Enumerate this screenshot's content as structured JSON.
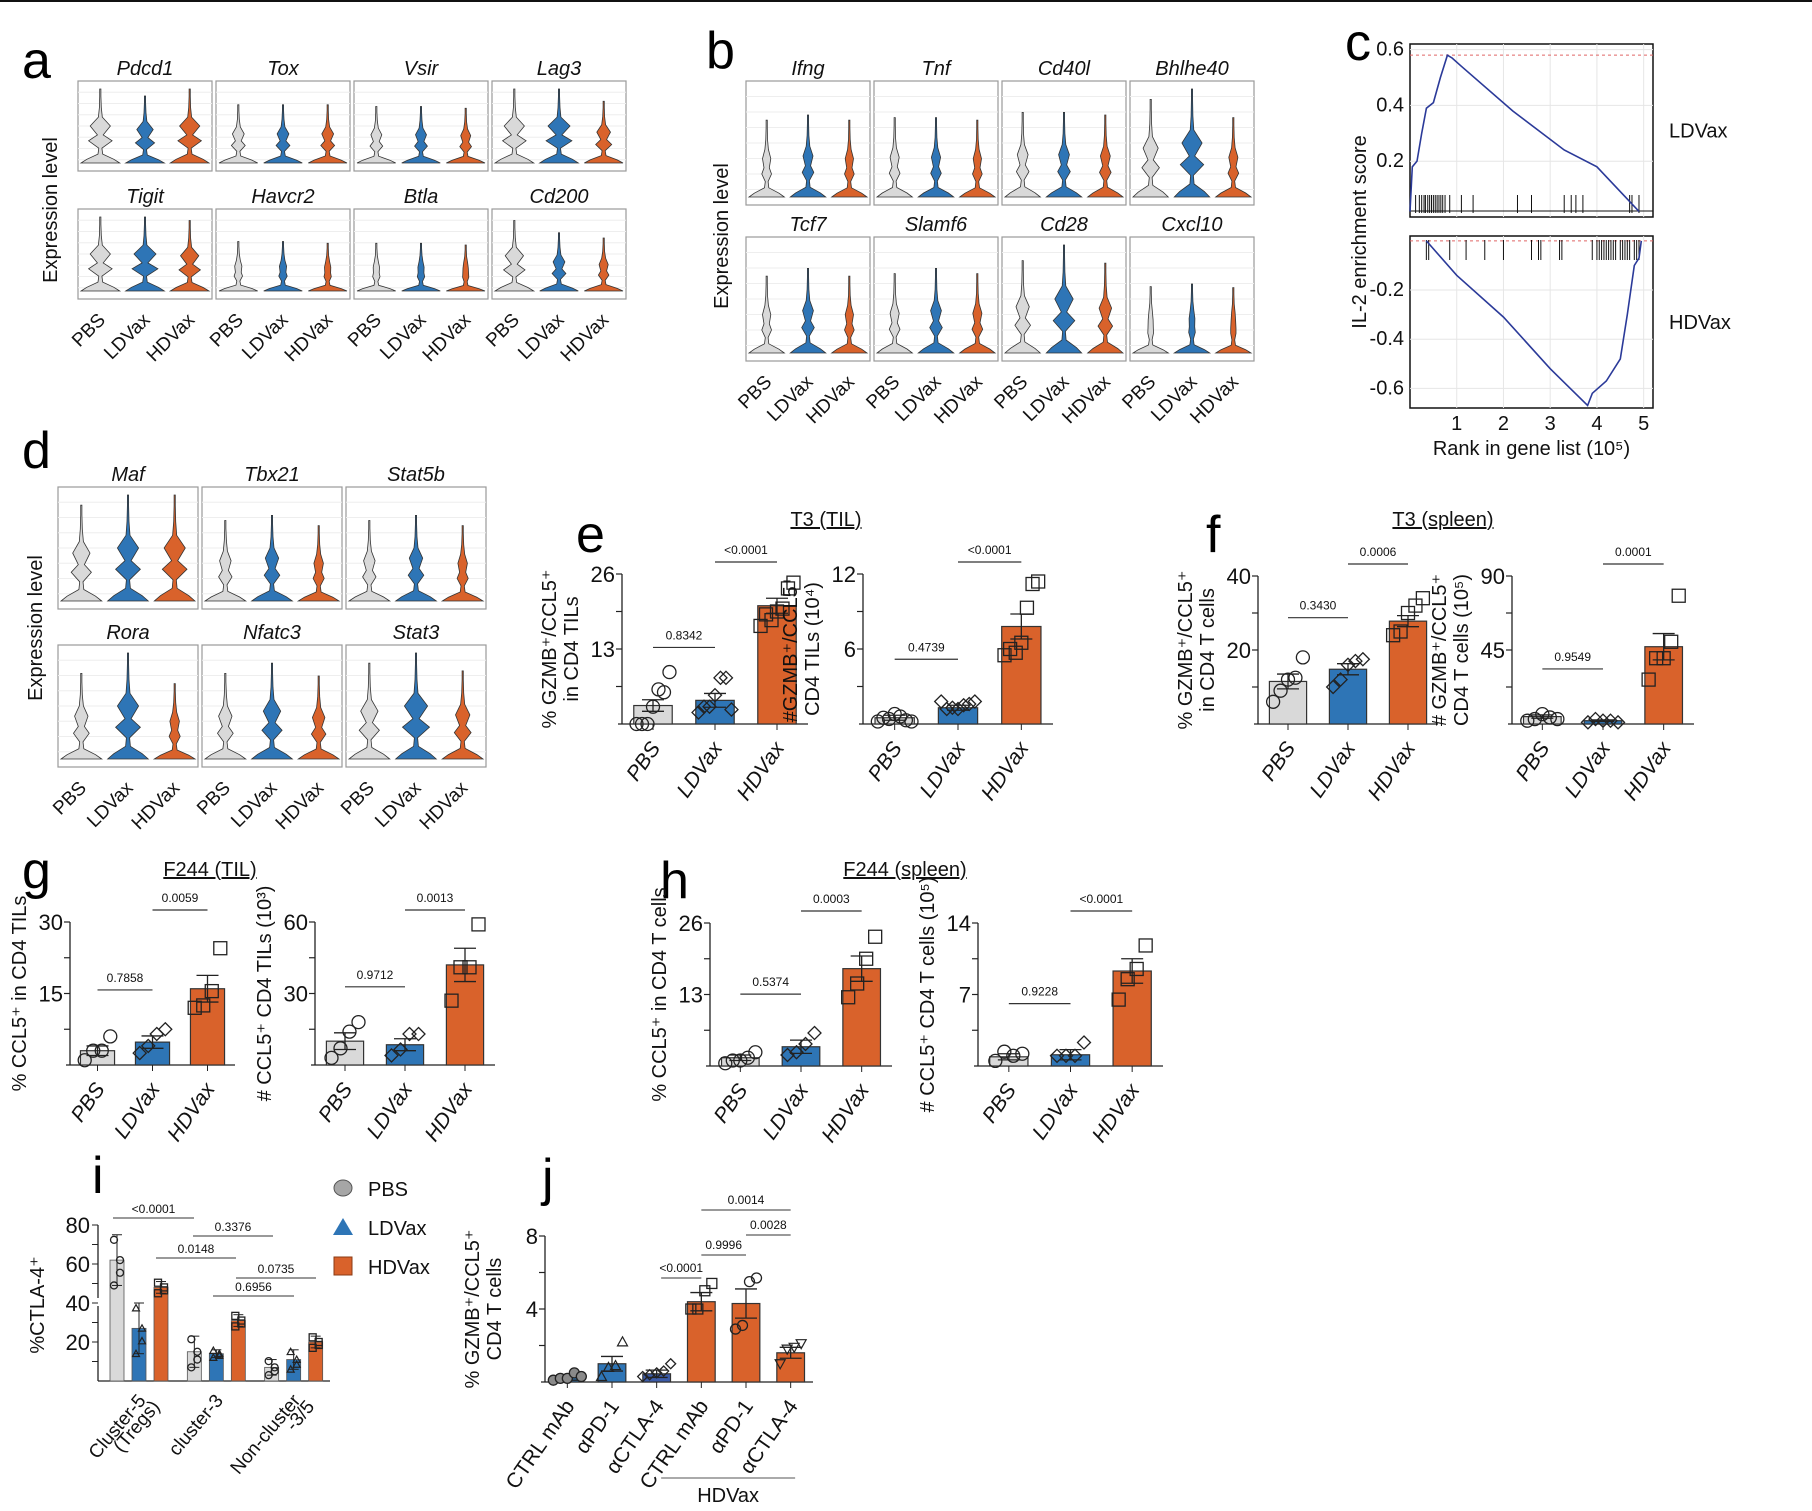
{
  "colors": {
    "PBS": "#d9d9d9",
    "LDVax": "#2e75b6",
    "HDVax": "#d9622b",
    "LDVax_ctla4": "#3b5ba9",
    "gsea_line": "#2b3a99",
    "gsea_ref": "#e06666"
  },
  "groups": [
    "PBS",
    "LDVax",
    "HDVax"
  ],
  "chart_data": [
    {
      "panel": "a",
      "type": "violin",
      "ylabel": "Expression level",
      "categories": [
        "PBS",
        "LDVax",
        "HDVax"
      ],
      "genes": [
        "Pdcd1",
        "Tox",
        "Vsir",
        "Lag3",
        "Tigit",
        "Havcr2",
        "Btla",
        "Cd200"
      ],
      "relative_width": [
        [
          0.9,
          0.7,
          0.9
        ],
        [
          0.45,
          0.45,
          0.45
        ],
        [
          0.4,
          0.4,
          0.35
        ],
        [
          0.9,
          1.0,
          0.55
        ],
        [
          0.9,
          1.0,
          0.8
        ],
        [
          0.2,
          0.2,
          0.15
        ],
        [
          0.15,
          0.15,
          0.1
        ],
        [
          0.8,
          0.45,
          0.3
        ]
      ]
    },
    {
      "panel": "b",
      "type": "violin",
      "ylabel": "Expression level",
      "categories": [
        "PBS",
        "LDVax",
        "HDVax"
      ],
      "genes": [
        "Ifng",
        "Tnf",
        "Cd40l",
        "Bhlhe40",
        "Tcf7",
        "Slamf6",
        "Cd28",
        "Cxcl10"
      ],
      "relative_width": [
        [
          0.3,
          0.4,
          0.3
        ],
        [
          0.35,
          0.35,
          0.3
        ],
        [
          0.45,
          0.45,
          0.4
        ],
        [
          0.7,
          1.0,
          0.35
        ],
        [
          0.3,
          0.45,
          0.3
        ],
        [
          0.35,
          0.45,
          0.35
        ],
        [
          0.6,
          0.9,
          0.55
        ],
        [
          0.1,
          0.15,
          0.08
        ]
      ]
    },
    {
      "panel": "c",
      "type": "line",
      "title": "",
      "ylabel": "IL-2 enrichment score",
      "xlabel": "Rank in gene list (10⁵)",
      "x_ticks": [
        "1",
        "2",
        "3",
        "4",
        "5"
      ],
      "xlim": [
        0,
        5.2
      ],
      "series": [
        {
          "name": "LDVax",
          "ylim": [
            0,
            0.62
          ],
          "y_ticks": [
            "0.2",
            "0.4",
            "0.6"
          ],
          "peak": 0.58,
          "x": [
            0,
            0.05,
            0.15,
            0.25,
            0.35,
            0.5,
            0.65,
            0.8,
            0.9,
            1.1,
            2.2,
            3.3,
            4.0,
            4.9
          ],
          "y": [
            0.02,
            0.18,
            0.2,
            0.3,
            0.39,
            0.41,
            0.5,
            0.58,
            0.57,
            0.54,
            0.38,
            0.24,
            0.18,
            0.02
          ],
          "hits": [
            0.12,
            0.2,
            0.25,
            0.3,
            0.33,
            0.38,
            0.42,
            0.46,
            0.5,
            0.54,
            0.58,
            0.62,
            0.66,
            0.7,
            0.75,
            0.85,
            1.1,
            1.35,
            2.3,
            2.6,
            3.3,
            3.45,
            3.55,
            3.7,
            4.7,
            4.75,
            4.9
          ]
        },
        {
          "name": "HDVax",
          "ylim": [
            -0.68,
            0.02
          ],
          "y_ticks": [
            "-0.2",
            "-0.4",
            "-0.6"
          ],
          "peak": -0.67,
          "x": [
            0.35,
            1.0,
            2.0,
            3.0,
            3.8,
            3.9,
            4.2,
            4.5,
            4.65,
            4.8,
            4.9,
            4.95
          ],
          "y": [
            0.0,
            -0.14,
            -0.31,
            -0.52,
            -0.67,
            -0.62,
            -0.57,
            -0.48,
            -0.3,
            -0.1,
            -0.07,
            0.0
          ],
          "hits": [
            0.35,
            0.4,
            0.85,
            1.2,
            1.6,
            2.0,
            2.6,
            2.75,
            2.8,
            3.2,
            3.25,
            3.9,
            4.0,
            4.05,
            4.1,
            4.15,
            4.2,
            4.25,
            4.3,
            4.35,
            4.4,
            4.5,
            4.55,
            4.6,
            4.65,
            4.7,
            4.8,
            4.85,
            4.9
          ]
        }
      ]
    },
    {
      "panel": "d",
      "type": "violin",
      "ylabel": "Expression level",
      "categories": [
        "PBS",
        "LDVax",
        "HDVax"
      ],
      "genes": [
        "Maf",
        "Tbx21",
        "Stat5b",
        "Rora",
        "Nfatc3",
        "Stat3"
      ],
      "relative_width": [
        [
          0.7,
          0.9,
          0.9
        ],
        [
          0.4,
          0.5,
          0.3
        ],
        [
          0.4,
          0.5,
          0.3
        ],
        [
          0.5,
          0.9,
          0.3
        ],
        [
          0.5,
          0.7,
          0.45
        ],
        [
          0.7,
          1.0,
          0.55
        ]
      ]
    },
    {
      "panel": "e",
      "title": "T3 (TIL)",
      "charts": [
        {
          "type": "bar",
          "ylabel": [
            "% GZMB⁺/CCL5⁺",
            "in CD4 TILs"
          ],
          "ylim": [
            0,
            26
          ],
          "y_ticks": [
            13,
            26
          ],
          "categories": [
            "PBS",
            "LDVax",
            "HDVax"
          ],
          "values": [
            3.2,
            4.1,
            20.5
          ],
          "sem": [
            1.0,
            1.2,
            1.3
          ],
          "points": [
            [
              0,
              0,
              0,
              3,
              6,
              5.5,
              9
            ],
            [
              2,
              3,
              3,
              5,
              8,
              8,
              2.5
            ],
            [
              17,
              19,
              18,
              19.5,
              20,
              23.5,
              24.5
            ]
          ],
          "pvalues": [
            {
              "from": 0,
              "to": 1,
              "label": "0.8342"
            },
            {
              "from": 1,
              "to": 2,
              "label": "<0.0001"
            }
          ]
        },
        {
          "type": "bar",
          "ylabel": [
            "#GZMB⁺/CCL5⁺",
            "CD4 TILs (10⁴)"
          ],
          "ylim": [
            0,
            12
          ],
          "y_ticks": [
            6,
            12
          ],
          "categories": [
            "PBS",
            "LDVax",
            "HDVax"
          ],
          "values": [
            0.5,
            1.3,
            7.8
          ],
          "sem": [
            0.2,
            0.2,
            1.0
          ],
          "points": [
            [
              0.2,
              0.5,
              0.4,
              0.8,
              0.6,
              0.3,
              0.2
            ],
            [
              1.8,
              1.2,
              1.3,
              1.2,
              1.5,
              1.6,
              1.8
            ],
            [
              5.5,
              6.0,
              5.7,
              6.5,
              9.3,
              11.2,
              11.4
            ]
          ],
          "pvalues": [
            {
              "from": 0,
              "to": 1,
              "label": "0.4739"
            },
            {
              "from": 1,
              "to": 2,
              "label": "<0.0001"
            }
          ]
        }
      ]
    },
    {
      "panel": "f",
      "title": "T3 (spleen)",
      "charts": [
        {
          "type": "bar",
          "ylabel": [
            "% GZMB⁺/CCL5⁺",
            "in CD4 T cells"
          ],
          "ylim": [
            0,
            40
          ],
          "y_ticks": [
            20,
            40
          ],
          "categories": [
            "PBS",
            "LDVax",
            "HDVax"
          ],
          "values": [
            11.5,
            14.8,
            27.8
          ],
          "sem": [
            2.0,
            1.5,
            1.5
          ],
          "points": [
            [
              6,
              9,
              12,
              12.5,
              18
            ],
            [
              10,
              12,
              16,
              17,
              17.5
            ],
            [
              24,
              25,
              30,
              32,
              34
            ]
          ],
          "pvalues": [
            {
              "from": 0,
              "to": 1,
              "label": "0.3430"
            },
            {
              "from": 1,
              "to": 2,
              "label": "0.0006"
            }
          ]
        },
        {
          "type": "bar",
          "ylabel": [
            "# GZMB⁺/CCL5⁺",
            "CD4 T cells (10⁵)"
          ],
          "ylim": [
            0,
            90
          ],
          "y_ticks": [
            45,
            90
          ],
          "categories": [
            "PBS",
            "LDVax",
            "HDVax"
          ],
          "values": [
            4.5,
            2.0,
            47
          ],
          "sem": [
            1.0,
            0.5,
            8.0
          ],
          "points": [
            [
              2,
              3,
              6,
              4,
              3
            ],
            [
              1,
              3,
              2,
              2,
              1
            ],
            [
              27,
              40,
              40,
              50,
              78
            ]
          ],
          "pvalues": [
            {
              "from": 0,
              "to": 1,
              "label": "0.9549"
            },
            {
              "from": 1,
              "to": 2,
              "label": "0.0001"
            }
          ]
        }
      ]
    },
    {
      "panel": "g",
      "title": "F244 (TIL)",
      "charts": [
        {
          "type": "bar",
          "ylabel": [
            "% CCL5⁺ in CD4 TILs"
          ],
          "ylim": [
            0,
            30
          ],
          "y_ticks": [
            15,
            30
          ],
          "categories": [
            "PBS",
            "LDVax",
            "HDVax"
          ],
          "values": [
            3.0,
            4.8,
            16.0
          ],
          "sem": [
            1.0,
            1.3,
            2.8
          ],
          "points": [
            [
              1,
              3,
              3,
              6
            ],
            [
              2.5,
              4,
              6.5,
              7.5
            ],
            [
              12,
              12.5,
              15.5,
              24.5
            ]
          ],
          "pvalues": [
            {
              "from": 0,
              "to": 1,
              "label": "0.7858"
            },
            {
              "from": 1,
              "to": 2,
              "label": "0.0059"
            }
          ]
        },
        {
          "type": "bar",
          "ylabel": [
            "# CCL5⁺ CD4 TILs (10³)"
          ],
          "ylim": [
            0,
            60
          ],
          "y_ticks": [
            30,
            60
          ],
          "categories": [
            "PBS",
            "LDVax",
            "HDVax"
          ],
          "values": [
            10,
            8.5,
            42
          ],
          "sem": [
            3.5,
            2.5,
            7.0
          ],
          "points": [
            [
              3,
              7,
              14,
              18
            ],
            [
              4,
              6.5,
              13,
              13
            ],
            [
              27,
              41,
              41,
              59
            ]
          ],
          "pvalues": [
            {
              "from": 0,
              "to": 1,
              "label": "0.9712"
            },
            {
              "from": 1,
              "to": 2,
              "label": "0.0013"
            }
          ]
        }
      ]
    },
    {
      "panel": "h",
      "title": "F244 (spleen)",
      "charts": [
        {
          "type": "bar",
          "ylabel": [
            "% CCL5⁺ in CD4 T cells"
          ],
          "ylim": [
            0,
            26
          ],
          "y_ticks": [
            13,
            26
          ],
          "categories": [
            "PBS",
            "LDVax",
            "HDVax"
          ],
          "values": [
            1.5,
            3.5,
            17.7
          ],
          "sem": [
            0.5,
            1.2,
            2.3
          ],
          "points": [
            [
              0.5,
              1.0,
              1.0,
              1.5,
              2.5
            ],
            [
              2,
              2.5,
              4,
              6
            ],
            [
              12.5,
              15,
              19.5,
              23.5
            ]
          ],
          "pvalues": [
            {
              "from": 0,
              "to": 1,
              "label": "0.5374"
            },
            {
              "from": 1,
              "to": 2,
              "label": "0.0003"
            }
          ]
        },
        {
          "type": "bar",
          "ylabel": [
            "# CCL5⁺ CD4 T cells (10⁵)"
          ],
          "ylim": [
            0,
            14
          ],
          "y_ticks": [
            7,
            14
          ],
          "categories": [
            "PBS",
            "LDVax",
            "HDVax"
          ],
          "values": [
            0.9,
            1.1,
            9.3
          ],
          "sem": [
            0.3,
            0.5,
            1.2
          ],
          "points": [
            [
              0.5,
              1.4,
              1.0,
              1.2
            ],
            [
              1.0,
              1.0,
              1.0,
              2.3
            ],
            [
              6.5,
              8.5,
              9.5,
              11.8
            ]
          ],
          "pvalues": [
            {
              "from": 0,
              "to": 1,
              "label": "0.9228"
            },
            {
              "from": 1,
              "to": 2,
              "label": "<0.0001"
            }
          ]
        }
      ]
    },
    {
      "panel": "i",
      "type": "grouped_bar",
      "ylabel": "%CTLA-4⁺",
      "ylim": [
        0,
        80
      ],
      "y_ticks": [
        20,
        40,
        60,
        80
      ],
      "axis_break": 40,
      "categories": [
        "Cluster-5\n(Tregs)",
        "cluster-3",
        "Non-cluster\n-3/5"
      ],
      "legend": [
        {
          "name": "PBS",
          "marker": "circle"
        },
        {
          "name": "LDVax",
          "marker": "triangle"
        },
        {
          "name": "HDVax",
          "marker": "square"
        }
      ],
      "legend_position": "top-right",
      "series": [
        {
          "name": "PBS",
          "values": [
            62,
            15,
            7
          ],
          "sd": [
            13,
            8,
            4
          ]
        },
        {
          "name": "LDVax",
          "values": [
            27,
            14,
            11
          ],
          "sd": [
            13,
            2,
            5
          ]
        },
        {
          "name": "HDVax",
          "values": [
            48,
            31,
            20
          ],
          "sd": [
            3,
            3,
            3
          ]
        }
      ],
      "pvalues": [
        "<0.0001",
        "0.3376",
        "0.0148",
        "0.0735",
        "0.6956"
      ]
    },
    {
      "panel": "j",
      "type": "bar",
      "ylabel": [
        "% GZMB⁺/CCL5⁺",
        "CD4 T cells"
      ],
      "ylim": [
        0,
        8
      ],
      "y_ticks": [
        4,
        8
      ],
      "categories": [
        "CTRL mAb",
        "αPD-1",
        "αCTLA-4",
        "CTRL mAb",
        "αPD-1",
        "αCTLA-4"
      ],
      "group_label": "HDVax",
      "values": [
        0.25,
        1.0,
        0.45,
        4.4,
        4.3,
        1.6
      ],
      "sem": [
        0.15,
        0.4,
        0.2,
        0.5,
        0.8,
        0.3
      ],
      "pvalues": [
        "<0.0001",
        "0.9996",
        "0.0028",
        "0.0014"
      ]
    }
  ],
  "panel_labels": {
    "a": "a",
    "b": "b",
    "c": "c",
    "d": "d",
    "e": "e",
    "f": "f",
    "g": "g",
    "h": "h",
    "i": "i",
    "j": "j"
  },
  "gsea_labels": {
    "top": "LDVax",
    "bottom": "HDVax"
  }
}
